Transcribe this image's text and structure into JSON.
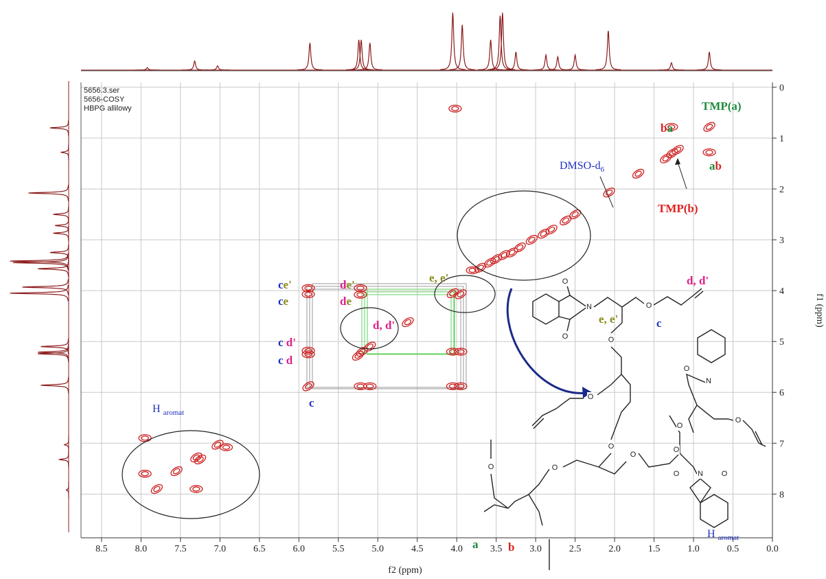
{
  "chart_data": {
    "type": "nmr-2d",
    "xlabel": "f2 (ppm)",
    "ylabel": "f1 (ppm)",
    "info": [
      "5656.3.ser",
      "5656-COSY",
      "HBPG allilowy"
    ],
    "xlim": [
      8.76,
      0
    ],
    "ylim": [
      0,
      8.86
    ],
    "xticks": [
      8.5,
      {
        "value": 8,
        "label": "8.0"
      },
      7.5,
      {
        "value": 7,
        "label": "7.0"
      },
      6.5,
      {
        "value": 6,
        "label": "6.0"
      },
      5.5,
      {
        "value": 5,
        "label": "5.0"
      },
      4.5,
      {
        "value": 4,
        "label": "4.0"
      },
      3.5,
      {
        "value": 3,
        "label": "3.0"
      },
      2.5,
      {
        "value": 2,
        "label": "2.0"
      },
      1.5,
      {
        "value": 1,
        "label": "1.0"
      },
      0.5,
      {
        "value": 0,
        "label": "0.0"
      }
    ],
    "yticks": [
      0,
      1,
      2,
      3,
      4,
      5,
      6,
      7,
      8
    ],
    "grid": true,
    "contour_color": "#cc1f1f",
    "projection_color": "#8b1a1a",
    "projection": {
      "x": [
        7.92,
        7.32,
        7.03,
        5.86,
        5.24,
        5.21,
        5.1,
        4.05,
        3.93,
        3.57,
        3.45,
        3.42,
        3.25,
        2.87,
        2.72,
        2.5,
        2.08,
        1.28,
        0.8
      ],
      "values": [
        0.04,
        0.15,
        0.07,
        0.45,
        0.5,
        0.5,
        0.45,
        0.95,
        0.75,
        0.5,
        0.9,
        0.95,
        0.3,
        0.25,
        0.22,
        0.25,
        0.65,
        0.12,
        0.3
      ]
    },
    "peaks": {
      "f2": [
        0.8,
        1.28,
        0.8,
        1.27,
        1.2,
        1.35,
        1.7,
        2.07,
        2.5,
        2.62,
        2.8,
        2.9,
        3.05,
        3.2,
        3.3,
        3.4,
        3.5,
        3.58,
        3.7,
        3.8,
        4.05,
        3.95,
        4.02,
        4.62,
        5.2,
        5.1,
        5.25,
        5.88,
        5.88,
        5.88,
        5.88,
        5.88,
        5.22,
        5.22,
        5.22,
        5.1,
        4.05,
        3.95,
        3.95,
        4.05,
        7.95,
        7.95,
        7.8,
        7.3,
        7.25,
        7.03,
        7.3,
        7.55,
        6.92
      ],
      "f1": [
        0.78,
        0.78,
        1.28,
        1.3,
        1.23,
        1.4,
        1.7,
        2.07,
        2.5,
        2.62,
        2.8,
        2.88,
        3.0,
        3.15,
        3.25,
        3.3,
        3.38,
        3.45,
        3.55,
        3.6,
        4.05,
        4.07,
        0.42,
        4.62,
        5.2,
        5.1,
        5.28,
        3.95,
        4.07,
        5.18,
        5.25,
        5.88,
        3.95,
        4.08,
        5.88,
        5.88,
        5.88,
        5.88,
        5.2,
        5.2,
        7.6,
        6.9,
        7.9,
        7.28,
        7.32,
        7.03,
        7.9,
        7.55,
        7.08
      ]
    },
    "annotations": [
      {
        "parts": [
          {
            "text": "b",
            "color": "#e02020"
          },
          {
            "text": "a",
            "color": "#1e8a3c"
          }
        ]
      },
      {
        "parts": [
          {
            "text": "TMP(a)",
            "color": "#1e8a3c"
          }
        ]
      },
      {
        "parts": [
          {
            "text": "DMSO-d",
            "color": "#2030c0",
            "sub": "6"
          }
        ]
      },
      {
        "parts": [
          {
            "text": "a",
            "color": "#1e8a3c"
          },
          {
            "text": "b",
            "color": "#e02020"
          }
        ]
      },
      {
        "parts": [
          {
            "text": "TMP(b)",
            "color": "#e02020"
          }
        ]
      },
      {
        "parts": [
          {
            "text": "e, e'",
            "color": "#8a8a1a"
          }
        ]
      },
      {
        "parts": [
          {
            "text": "c",
            "color": "#2030c0"
          },
          {
            "text": "e'",
            "color": "#8a8a1a"
          }
        ]
      },
      {
        "parts": [
          {
            "text": "c",
            "color": "#2030c0"
          },
          {
            "text": "e",
            "color": "#8a8a1a"
          }
        ]
      },
      {
        "parts": [
          {
            "text": "d",
            "color": "#e0208a"
          },
          {
            "text": "e'",
            "color": "#8a8a1a"
          }
        ]
      },
      {
        "parts": [
          {
            "text": "d",
            "color": "#e0208a"
          },
          {
            "text": "e",
            "color": "#8a8a1a"
          }
        ]
      },
      {
        "parts": [
          {
            "text": "d, d'",
            "color": "#e0208a"
          }
        ]
      },
      {
        "parts": [
          {
            "text": "c ",
            "color": "#2030c0"
          },
          {
            "text": "d'",
            "color": "#e0208a"
          }
        ]
      },
      {
        "parts": [
          {
            "text": "c ",
            "color": "#2030c0"
          },
          {
            "text": "d",
            "color": "#e0208a"
          }
        ]
      },
      {
        "parts": [
          {
            "text": "c",
            "color": "#2030c0"
          }
        ]
      },
      {
        "parts": [
          {
            "text": "H ",
            "color": "#2030c0",
            "sub": "aromat"
          }
        ]
      },
      {
        "parts": [
          {
            "text": "e, e'",
            "color": "#8a8a1a"
          }
        ]
      },
      {
        "parts": [
          {
            "text": "d, d'",
            "color": "#e0208a"
          }
        ]
      },
      {
        "parts": [
          {
            "text": "c",
            "color": "#2030c0"
          }
        ]
      },
      {
        "parts": [
          {
            "text": "a",
            "color": "#1e8a3c"
          }
        ]
      },
      {
        "parts": [
          {
            "text": "b",
            "color": "#e02020"
          }
        ]
      },
      {
        "parts": [
          {
            "text": "H ",
            "color": "#2030c0",
            "sub": "aromat"
          }
        ]
      }
    ],
    "structure_atoms": [
      "O",
      "O",
      "N",
      "O",
      "O",
      "O",
      "O",
      "O",
      "O",
      "O",
      "N",
      "O",
      "O",
      "O",
      "N",
      "O",
      "O",
      "O"
    ]
  }
}
